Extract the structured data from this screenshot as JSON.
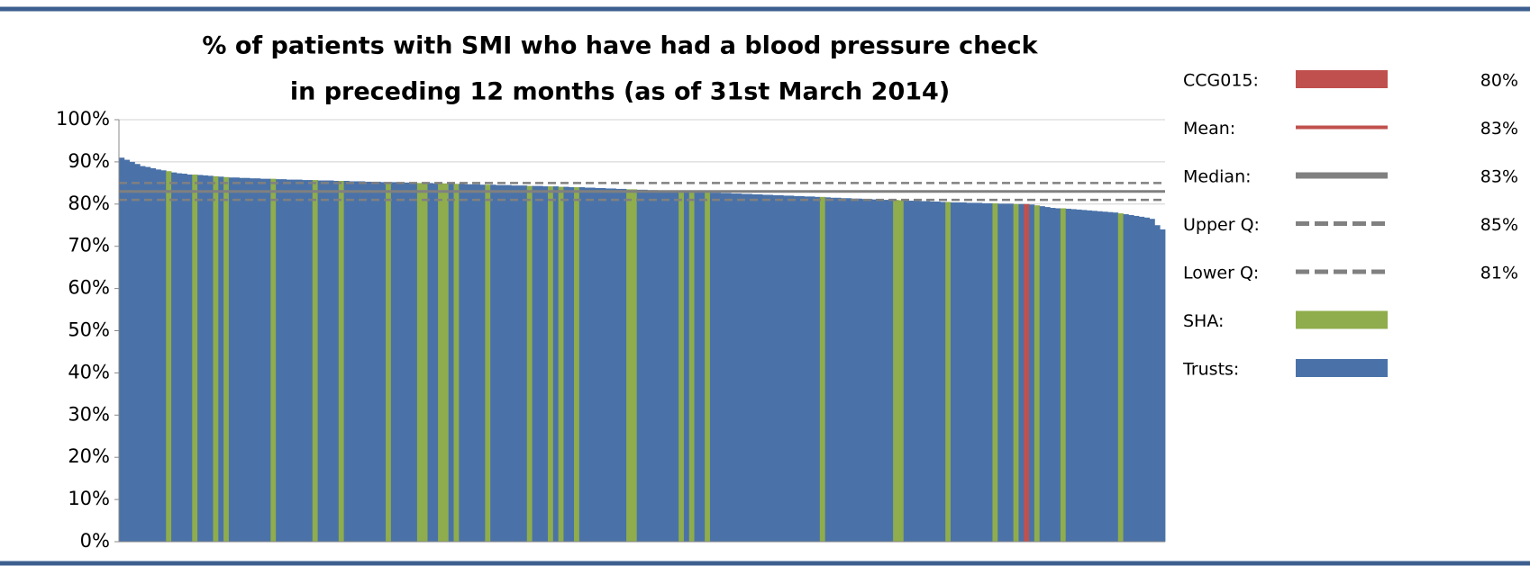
{
  "chart_data": {
    "type": "bar",
    "title": [
      "% of patients with SMI who have had a blood pressure check",
      "in preceding 12 months (as of 31st March 2014)"
    ],
    "ylim": [
      0,
      100
    ],
    "yticks": [
      {
        "value": 0,
        "label": "0%"
      },
      {
        "value": 10,
        "label": "10%"
      },
      {
        "value": 20,
        "label": "20%"
      },
      {
        "value": 30,
        "label": "30%"
      },
      {
        "value": 40,
        "label": "40%"
      },
      {
        "value": 50,
        "label": "50%"
      },
      {
        "value": 60,
        "label": "60%"
      },
      {
        "value": 70,
        "label": "70%"
      },
      {
        "value": 80,
        "label": "80%"
      },
      {
        "value": 90,
        "label": "90%"
      },
      {
        "value": 100,
        "label": "100%"
      }
    ],
    "grid": true,
    "values": [
      91,
      90.5,
      90,
      89.5,
      89,
      88.8,
      88.5,
      88.2,
      88,
      87.8,
      87.5,
      87.3,
      87.2,
      87,
      87,
      86.9,
      86.8,
      86.7,
      86.6,
      86.5,
      86.4,
      86.3,
      86.3,
      86.2,
      86.2,
      86.1,
      86.1,
      86,
      86,
      86,
      85.9,
      85.9,
      85.8,
      85.8,
      85.8,
      85.7,
      85.7,
      85.7,
      85.6,
      85.6,
      85.6,
      85.5,
      85.5,
      85.5,
      85.4,
      85.4,
      85.4,
      85.3,
      85.3,
      85.3,
      85.2,
      85.2,
      85.2,
      85.1,
      85.1,
      85.1,
      85,
      85,
      85,
      85,
      84.9,
      84.9,
      84.9,
      84.8,
      84.8,
      84.8,
      84.7,
      84.7,
      84.7,
      84.6,
      84.6,
      84.6,
      84.5,
      84.5,
      84.5,
      84.4,
      84.4,
      84.4,
      84.3,
      84.3,
      84.3,
      84.2,
      84.2,
      84.2,
      84.1,
      84.1,
      84,
      84,
      84,
      83.9,
      83.9,
      83.8,
      83.8,
      83.7,
      83.7,
      83.6,
      83.6,
      83.5,
      83.5,
      83.4,
      83.4,
      83.3,
      83.3,
      83.2,
      83.2,
      83.1,
      83.1,
      83,
      83,
      82.9,
      82.9,
      82.8,
      82.8,
      82.7,
      82.7,
      82.6,
      82.6,
      82.5,
      82.5,
      82.4,
      82.4,
      82.3,
      82.3,
      82.2,
      82.2,
      82.1,
      82.1,
      82,
      82,
      81.9,
      81.9,
      81.8,
      81.8,
      81.7,
      81.7,
      81.6,
      81.5,
      81.5,
      81.4,
      81.4,
      81.3,
      81.3,
      81.2,
      81.2,
      81.1,
      81.1,
      81,
      81,
      81,
      80.9,
      80.9,
      80.8,
      80.8,
      80.7,
      80.7,
      80.6,
      80.6,
      80.5,
      80.5,
      80.4,
      80.4,
      80.4,
      80.3,
      80.3,
      80.3,
      80.2,
      80.2,
      80.2,
      80.1,
      80.1,
      80.1,
      80,
      80,
      80,
      79.9,
      79.7,
      79.5,
      79.3,
      79.1,
      79,
      79,
      78.9,
      78.8,
      78.7,
      78.6,
      78.5,
      78.4,
      78.3,
      78.2,
      78.1,
      78,
      77.8,
      77.6,
      77.4,
      77.2,
      77,
      76.8,
      76.5,
      75,
      74
    ],
    "colors": [
      "#4a72a8",
      "#4a72a8",
      "#4a72a8",
      "#4a72a8",
      "#4a72a8",
      "#4a72a8",
      "#4a72a8",
      "#4a72a8",
      "#4a72a8",
      "#8fad4c",
      "#4a72a8",
      "#4a72a8",
      "#4a72a8",
      "#4a72a8",
      "#8fad4c",
      "#4a72a8",
      "#4a72a8",
      "#4a72a8",
      "#8fad4c",
      "#4a72a8",
      "#8fad4c",
      "#4a72a8",
      "#4a72a8",
      "#4a72a8",
      "#4a72a8",
      "#4a72a8",
      "#4a72a8",
      "#4a72a8",
      "#4a72a8",
      "#8fad4c",
      "#4a72a8",
      "#4a72a8",
      "#4a72a8",
      "#4a72a8",
      "#4a72a8",
      "#4a72a8",
      "#4a72a8",
      "#8fad4c",
      "#4a72a8",
      "#4a72a8",
      "#4a72a8",
      "#4a72a8",
      "#8fad4c",
      "#4a72a8",
      "#4a72a8",
      "#4a72a8",
      "#4a72a8",
      "#4a72a8",
      "#4a72a8",
      "#4a72a8",
      "#4a72a8",
      "#8fad4c",
      "#4a72a8",
      "#4a72a8",
      "#4a72a8",
      "#4a72a8",
      "#4a72a8",
      "#8fad4c",
      "#8fad4c",
      "#4a72a8",
      "#4a72a8",
      "#8fad4c",
      "#8fad4c",
      "#4a72a8",
      "#8fad4c",
      "#4a72a8",
      "#4a72a8",
      "#4a72a8",
      "#4a72a8",
      "#4a72a8",
      "#8fad4c",
      "#4a72a8",
      "#4a72a8",
      "#4a72a8",
      "#4a72a8",
      "#4a72a8",
      "#4a72a8",
      "#4a72a8",
      "#8fad4c",
      "#4a72a8",
      "#4a72a8",
      "#4a72a8",
      "#8fad4c",
      "#4a72a8",
      "#8fad4c",
      "#4a72a8",
      "#4a72a8",
      "#8fad4c",
      "#4a72a8",
      "#4a72a8",
      "#4a72a8",
      "#4a72a8",
      "#4a72a8",
      "#4a72a8",
      "#4a72a8",
      "#4a72a8",
      "#4a72a8",
      "#8fad4c",
      "#8fad4c",
      "#4a72a8",
      "#4a72a8",
      "#4a72a8",
      "#4a72a8",
      "#4a72a8",
      "#4a72a8",
      "#4a72a8",
      "#4a72a8",
      "#8fad4c",
      "#4a72a8",
      "#8fad4c",
      "#4a72a8",
      "#4a72a8",
      "#8fad4c",
      "#4a72a8",
      "#4a72a8",
      "#4a72a8",
      "#4a72a8",
      "#4a72a8",
      "#4a72a8",
      "#4a72a8",
      "#4a72a8",
      "#4a72a8",
      "#4a72a8",
      "#4a72a8",
      "#4a72a8",
      "#4a72a8",
      "#4a72a8",
      "#4a72a8",
      "#4a72a8",
      "#4a72a8",
      "#4a72a8",
      "#4a72a8",
      "#4a72a8",
      "#4a72a8",
      "#8fad4c",
      "#4a72a8",
      "#4a72a8",
      "#4a72a8",
      "#4a72a8",
      "#4a72a8",
      "#4a72a8",
      "#4a72a8",
      "#4a72a8",
      "#4a72a8",
      "#4a72a8",
      "#4a72a8",
      "#4a72a8",
      "#4a72a8",
      "#8fad4c",
      "#8fad4c",
      "#4a72a8",
      "#4a72a8",
      "#4a72a8",
      "#4a72a8",
      "#4a72a8",
      "#4a72a8",
      "#4a72a8",
      "#4a72a8",
      "#8fad4c",
      "#4a72a8",
      "#4a72a8",
      "#4a72a8",
      "#4a72a8",
      "#4a72a8",
      "#4a72a8",
      "#4a72a8",
      "#4a72a8",
      "#8fad4c",
      "#4a72a8",
      "#4a72a8",
      "#4a72a8",
      "#8fad4c",
      "#4a72a8",
      "#c0504d",
      "#4a72a8",
      "#8fad4c",
      "#4a72a8",
      "#4a72a8",
      "#4a72a8",
      "#4a72a8",
      "#8fad4c",
      "#4a72a8",
      "#4a72a8",
      "#4a72a8",
      "#4a72a8",
      "#4a72a8",
      "#4a72a8",
      "#4a72a8",
      "#4a72a8",
      "#4a72a8",
      "#4a72a8",
      "#8fad4c",
      "#4a72a8",
      "#4a72a8",
      "#4a72a8",
      "#4a72a8",
      "#4a72a8",
      "#4a72a8",
      "#4a72a8",
      "#4a72a8"
    ],
    "legend": [
      {
        "name": "CCG015:",
        "color": "#c0504d",
        "style": "bar",
        "value": 80,
        "value_label": "80%"
      },
      {
        "name": "Mean:",
        "color": "#c0504d",
        "style": "line",
        "value": 83,
        "value_label": "83%"
      },
      {
        "name": "Median:",
        "color": "#808080",
        "style": "thick",
        "value": 83,
        "value_label": "83%"
      },
      {
        "name": "Upper Q:",
        "color": "#808080",
        "style": "dashed",
        "value": 85,
        "value_label": "85%"
      },
      {
        "name": "Lower Q:",
        "color": "#808080",
        "style": "dashed",
        "value": 81,
        "value_label": "81%"
      },
      {
        "name": "SHA:",
        "color": "#8fad4c",
        "style": "bar"
      },
      {
        "name": "Trusts:",
        "color": "#4a72a8",
        "style": "bar"
      }
    ]
  }
}
